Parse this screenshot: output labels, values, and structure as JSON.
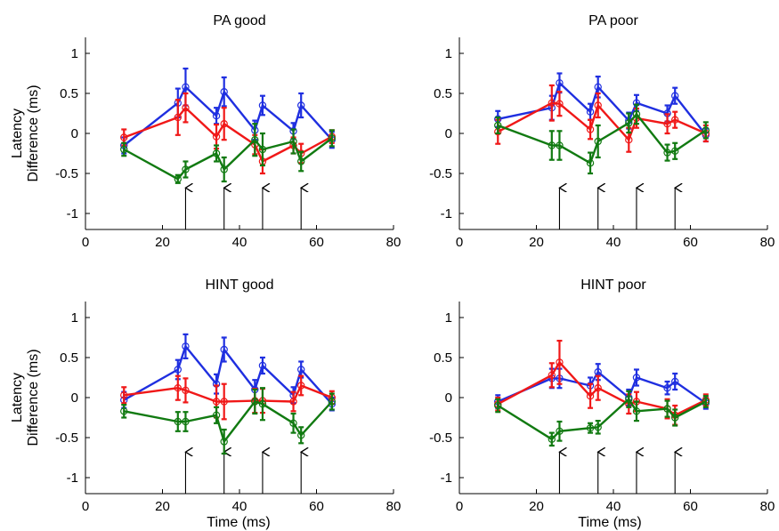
{
  "figure": {
    "shared_ylabel": [
      "Latency",
      "Difference (ms)"
    ],
    "shared_xlabel": "Time (ms)",
    "colors": {
      "blue": "#1f2fe0",
      "red": "#f01818",
      "green": "#117a11",
      "arrow": "#000000"
    }
  },
  "chart_data": [
    {
      "type": "line",
      "title": "PA good",
      "xlim": [
        0,
        80
      ],
      "ylim": [
        -1.2,
        1.2
      ],
      "xticks": [
        0,
        20,
        40,
        60,
        80
      ],
      "yticks": [
        -1,
        -0.5,
        0,
        0.5,
        1
      ],
      "arrows_x": [
        26,
        36,
        46,
        56
      ],
      "series": [
        {
          "color": "blue",
          "x": [
            10,
            24,
            26,
            34,
            36,
            44,
            46,
            54,
            56,
            64
          ],
          "y": [
            -0.15,
            0.38,
            0.58,
            0.22,
            0.52,
            0.04,
            0.35,
            0.03,
            0.35,
            -0.08
          ],
          "err": [
            0.1,
            0.18,
            0.23,
            0.1,
            0.18,
            0.12,
            0.12,
            0.1,
            0.15,
            0.1
          ]
        },
        {
          "color": "red",
          "x": [
            10,
            24,
            26,
            34,
            36,
            44,
            46,
            54,
            56,
            64
          ],
          "y": [
            -0.05,
            0.2,
            0.32,
            -0.04,
            0.12,
            -0.14,
            -0.35,
            -0.15,
            -0.25,
            -0.04
          ],
          "err": [
            0.1,
            0.22,
            0.18,
            0.15,
            0.2,
            0.12,
            0.15,
            0.1,
            0.12,
            0.08
          ]
        },
        {
          "color": "green",
          "x": [
            10,
            24,
            26,
            34,
            36,
            44,
            46,
            54,
            56,
            64
          ],
          "y": [
            -0.2,
            -0.57,
            -0.45,
            -0.25,
            -0.45,
            -0.08,
            -0.2,
            -0.1,
            -0.35,
            -0.06
          ],
          "err": [
            0.08,
            0.05,
            0.1,
            0.1,
            0.15,
            0.2,
            0.2,
            0.15,
            0.12,
            0.1
          ]
        }
      ]
    },
    {
      "type": "line",
      "title": "PA poor",
      "xlim": [
        0,
        80
      ],
      "ylim": [
        -1.2,
        1.2
      ],
      "xticks": [
        0,
        20,
        40,
        60,
        80
      ],
      "yticks": [
        -1,
        -0.5,
        0,
        0.5,
        1
      ],
      "arrows_x": [
        26,
        36,
        46,
        56
      ],
      "series": [
        {
          "color": "blue",
          "x": [
            10,
            24,
            26,
            34,
            36,
            44,
            46,
            54,
            56,
            64
          ],
          "y": [
            0.18,
            0.32,
            0.63,
            0.27,
            0.58,
            0.16,
            0.38,
            0.25,
            0.47,
            -0.02
          ],
          "err": [
            0.1,
            0.15,
            0.12,
            0.1,
            0.13,
            0.1,
            0.1,
            0.1,
            0.1,
            0.08
          ]
        },
        {
          "color": "red",
          "x": [
            10,
            24,
            26,
            34,
            36,
            44,
            46,
            54,
            56,
            64
          ],
          "y": [
            0.02,
            0.38,
            0.37,
            0.05,
            0.35,
            -0.08,
            0.19,
            0.12,
            0.17,
            0.0
          ],
          "err": [
            0.15,
            0.22,
            0.15,
            0.12,
            0.15,
            0.15,
            0.12,
            0.12,
            0.1,
            0.1
          ]
        },
        {
          "color": "green",
          "x": [
            10,
            24,
            26,
            34,
            36,
            44,
            46,
            54,
            56,
            64
          ],
          "y": [
            0.1,
            -0.15,
            -0.15,
            -0.37,
            -0.1,
            0.13,
            0.24,
            -0.24,
            -0.22,
            0.04
          ],
          "err": [
            0.1,
            0.18,
            0.18,
            0.13,
            0.2,
            0.12,
            0.12,
            0.1,
            0.1,
            0.1
          ]
        }
      ]
    },
    {
      "type": "line",
      "title": "HINT good",
      "xlim": [
        0,
        80
      ],
      "ylim": [
        -1.2,
        1.2
      ],
      "xticks": [
        0,
        20,
        40,
        60,
        80
      ],
      "yticks": [
        -1,
        -0.5,
        0,
        0.5,
        1
      ],
      "arrows_x": [
        26,
        36,
        46,
        56
      ],
      "series": [
        {
          "color": "blue",
          "x": [
            10,
            24,
            26,
            34,
            36,
            44,
            46,
            54,
            56,
            64
          ],
          "y": [
            -0.03,
            0.35,
            0.64,
            0.17,
            0.6,
            0.1,
            0.4,
            0.03,
            0.35,
            -0.08
          ],
          "err": [
            0.1,
            0.12,
            0.15,
            0.12,
            0.15,
            0.12,
            0.1,
            0.1,
            0.1,
            0.08
          ]
        },
        {
          "color": "red",
          "x": [
            10,
            24,
            26,
            34,
            36,
            44,
            46,
            54,
            56,
            64
          ],
          "y": [
            0.03,
            0.12,
            0.09,
            -0.05,
            -0.05,
            -0.04,
            -0.04,
            -0.05,
            0.15,
            0.0
          ],
          "err": [
            0.1,
            0.15,
            0.15,
            0.2,
            0.22,
            0.15,
            0.15,
            0.12,
            0.12,
            0.08
          ]
        },
        {
          "color": "green",
          "x": [
            10,
            24,
            26,
            34,
            36,
            44,
            46,
            54,
            56,
            64
          ],
          "y": [
            -0.17,
            -0.3,
            -0.3,
            -0.22,
            -0.55,
            -0.05,
            -0.08,
            -0.32,
            -0.47,
            -0.05
          ],
          "err": [
            0.08,
            0.12,
            0.12,
            0.1,
            0.15,
            0.15,
            0.2,
            0.12,
            0.1,
            0.1
          ]
        }
      ]
    },
    {
      "type": "line",
      "title": "HINT poor",
      "xlim": [
        0,
        80
      ],
      "ylim": [
        -1.2,
        1.2
      ],
      "xticks": [
        0,
        20,
        40,
        60,
        80
      ],
      "yticks": [
        -1,
        -0.5,
        0,
        0.5,
        1
      ],
      "arrows_x": [
        26,
        36,
        46,
        56
      ],
      "series": [
        {
          "color": "blue",
          "x": [
            10,
            24,
            26,
            34,
            36,
            44,
            46,
            54,
            56,
            64
          ],
          "y": [
            -0.05,
            0.24,
            0.24,
            0.15,
            0.32,
            0.0,
            0.25,
            0.12,
            0.2,
            -0.07
          ],
          "err": [
            0.08,
            0.12,
            0.12,
            0.1,
            0.1,
            0.1,
            0.1,
            0.08,
            0.1,
            0.07
          ]
        },
        {
          "color": "red",
          "x": [
            10,
            24,
            26,
            34,
            36,
            44,
            46,
            54,
            56,
            64
          ],
          "y": [
            -0.08,
            0.28,
            0.44,
            0.02,
            0.12,
            -0.08,
            -0.05,
            -0.14,
            -0.22,
            -0.03
          ],
          "err": [
            0.08,
            0.15,
            0.27,
            0.15,
            0.15,
            0.12,
            0.12,
            0.12,
            0.12,
            0.07
          ]
        },
        {
          "color": "green",
          "x": [
            10,
            24,
            26,
            34,
            36,
            44,
            46,
            54,
            56,
            64
          ],
          "y": [
            -0.1,
            -0.52,
            -0.42,
            -0.38,
            -0.37,
            -0.02,
            -0.17,
            -0.14,
            -0.25,
            -0.05
          ],
          "err": [
            0.08,
            0.08,
            0.12,
            0.06,
            0.08,
            0.1,
            0.12,
            0.1,
            0.1,
            0.07
          ]
        }
      ]
    }
  ]
}
